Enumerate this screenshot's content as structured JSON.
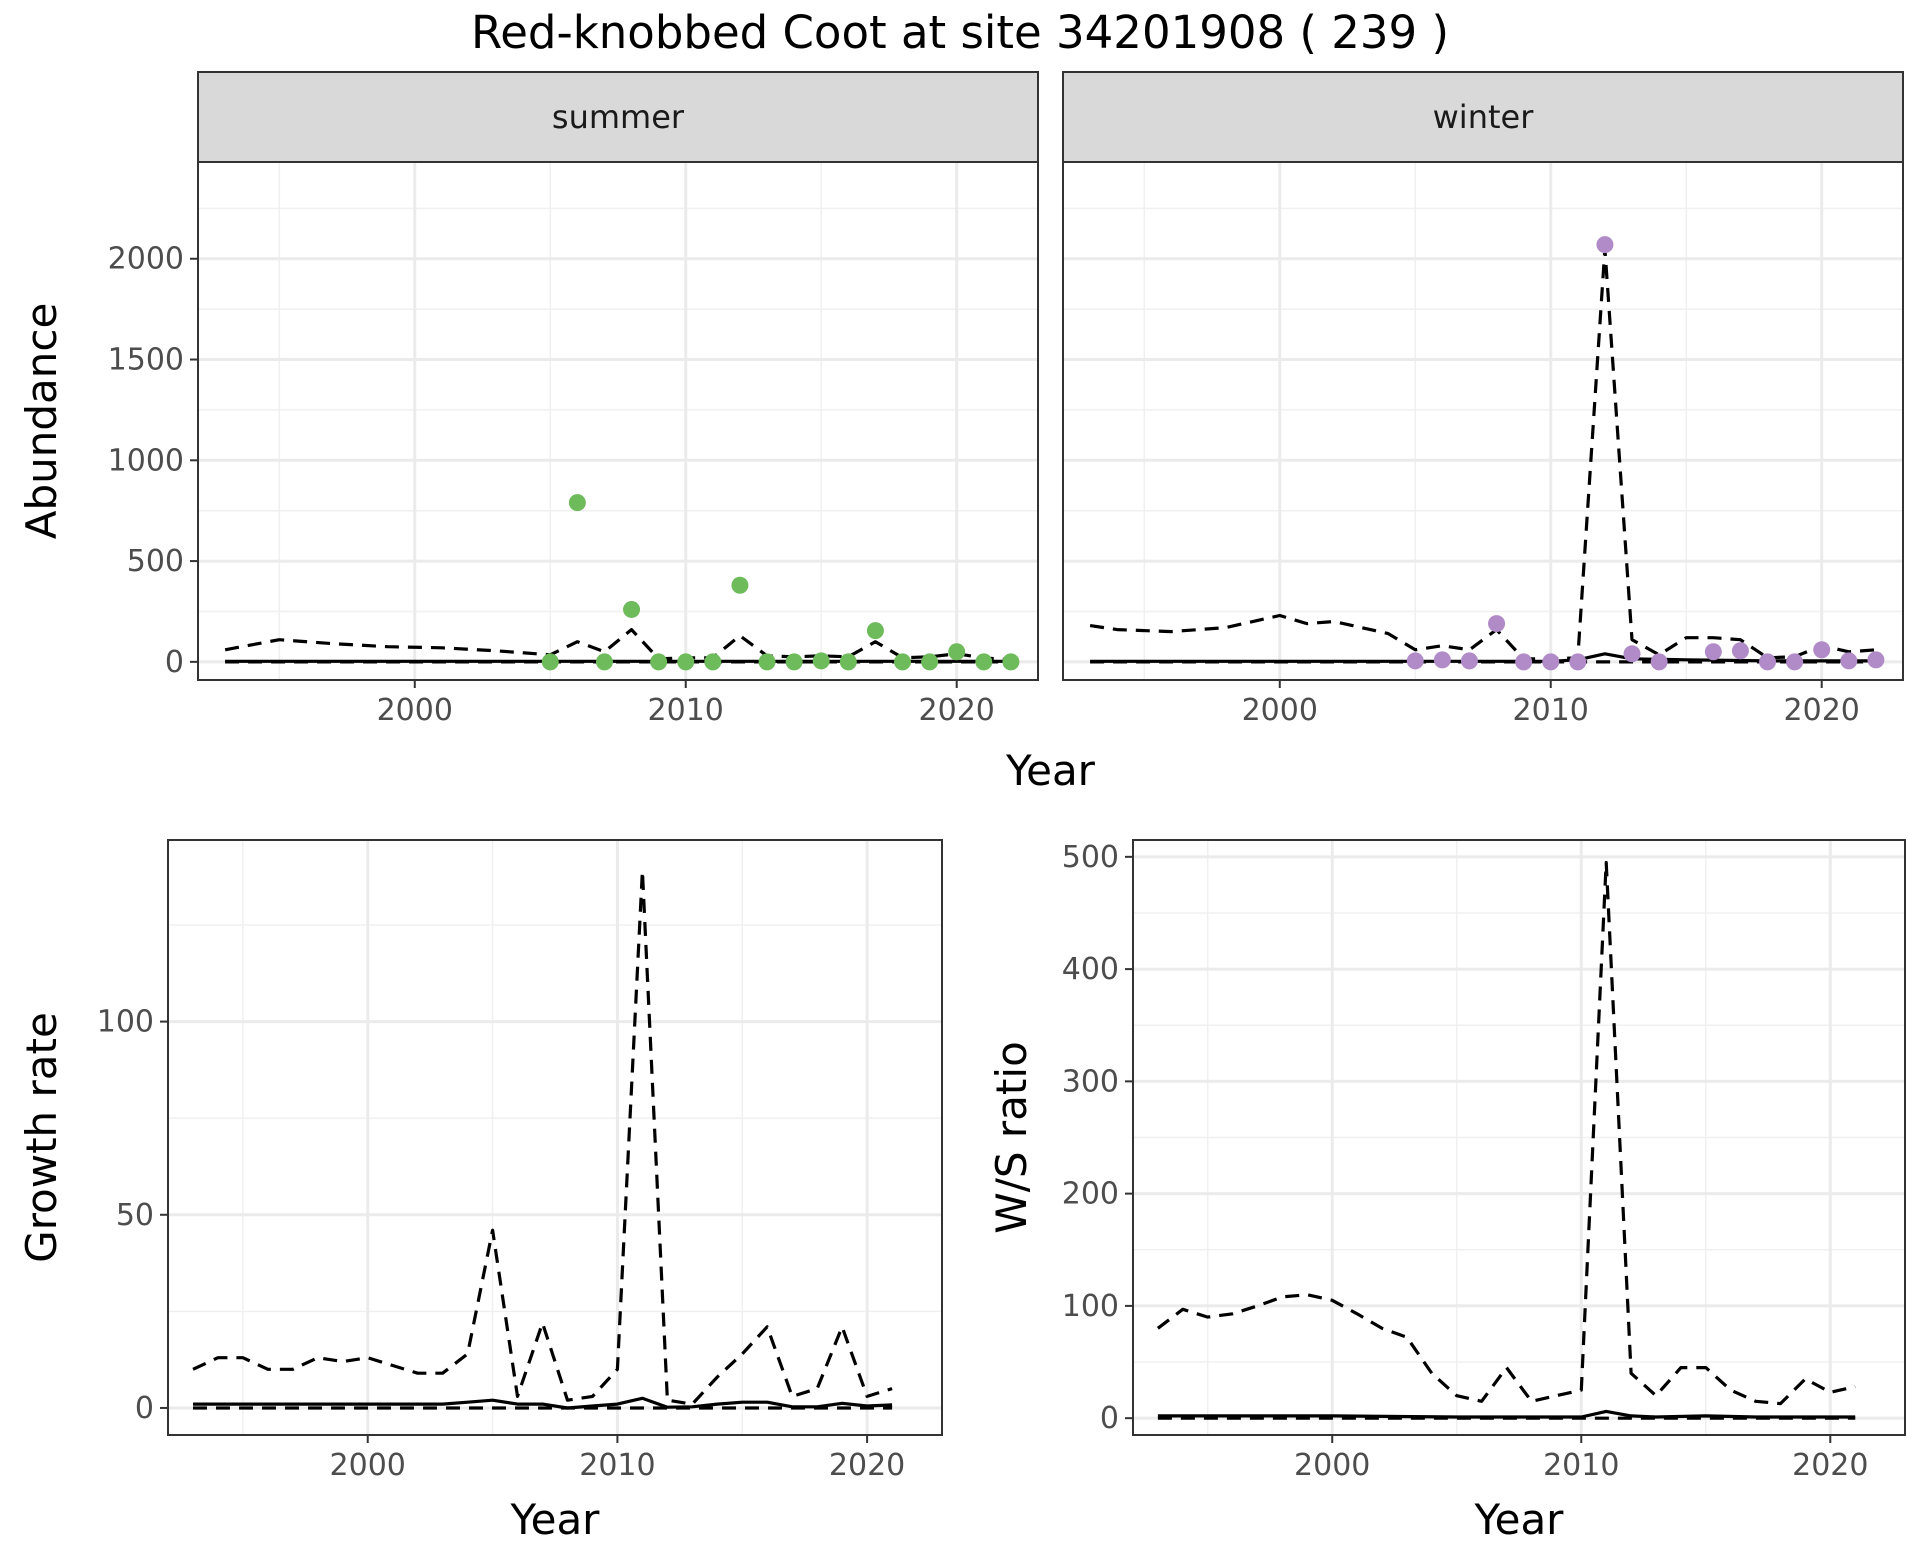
{
  "title": "Red-knobbed Coot at site 34201908 ( 239 )",
  "chart_data": [
    {
      "type": "line",
      "panel": "abundance",
      "facets": [
        "summer",
        "winter"
      ],
      "xlabel": "Year",
      "ylabel": "Abundance",
      "xlim": [
        1992,
        2023
      ],
      "ylim": [
        -90,
        2480
      ],
      "x_ticks": [
        2000,
        2010,
        2020
      ],
      "y_ticks": [
        0,
        500,
        1000,
        1500,
        2000
      ],
      "grid": true,
      "summer": {
        "point_color": "#6dbb5a",
        "points": {
          "x": [
            2005,
            2006,
            2007,
            2008,
            2009,
            2010,
            2011,
            2012,
            2013,
            2014,
            2015,
            2016,
            2017,
            2018,
            2019,
            2020,
            2021,
            2022
          ],
          "y": [
            0,
            790,
            0,
            260,
            0,
            0,
            0,
            380,
            0,
            0,
            5,
            0,
            155,
            0,
            0,
            50,
            0,
            0
          ]
        },
        "dashed_upper": {
          "x": [
            1993,
            1995,
            1997,
            1999,
            2001,
            2003,
            2005,
            2006,
            2007,
            2008,
            2009,
            2010,
            2011,
            2012,
            2013,
            2014,
            2015,
            2016,
            2017,
            2018,
            2019,
            2020,
            2021,
            2022
          ],
          "y": [
            60,
            110,
            90,
            75,
            70,
            55,
            35,
            100,
            50,
            160,
            15,
            20,
            20,
            130,
            30,
            25,
            30,
            25,
            100,
            20,
            25,
            40,
            20,
            10
          ]
        },
        "solid_mean": {
          "x": [
            1993,
            2022
          ],
          "y": [
            3,
            3
          ]
        },
        "dashed_lower": {
          "x": [
            1993,
            2022
          ],
          "y": [
            0,
            0
          ]
        }
      },
      "winter": {
        "point_color": "#b08bc8",
        "points": {
          "x": [
            2005,
            2006,
            2007,
            2008,
            2009,
            2010,
            2011,
            2012,
            2013,
            2014,
            2016,
            2017,
            2018,
            2019,
            2020,
            2021,
            2022
          ],
          "y": [
            5,
            10,
            5,
            190,
            0,
            0,
            0,
            2070,
            40,
            0,
            50,
            55,
            0,
            0,
            60,
            5,
            10
          ]
        },
        "dashed_upper": {
          "x": [
            1993,
            1994,
            1996,
            1998,
            2000,
            2001,
            2002,
            2004,
            2005,
            2006,
            2007,
            2008,
            2009,
            2010,
            2011,
            2012,
            2013,
            2014,
            2015,
            2016,
            2017,
            2018,
            2019,
            2020,
            2021,
            2022
          ],
          "y": [
            180,
            160,
            150,
            170,
            230,
            190,
            200,
            140,
            60,
            80,
            60,
            160,
            15,
            15,
            20,
            2050,
            110,
            35,
            120,
            120,
            110,
            20,
            25,
            80,
            50,
            60
          ]
        },
        "solid_mean": {
          "x": [
            1993,
            2010,
            2011,
            2012,
            2013,
            2015,
            2018,
            2022
          ],
          "y": [
            3,
            3,
            10,
            40,
            15,
            10,
            5,
            5
          ]
        },
        "dashed_lower": {
          "x": [
            1993,
            2022
          ],
          "y": [
            0,
            0
          ]
        }
      }
    },
    {
      "type": "line",
      "panel": "growth",
      "xlabel": "Year",
      "ylabel": "Growth rate",
      "xlim": [
        1992,
        2023
      ],
      "ylim": [
        -7,
        147
      ],
      "x_ticks": [
        2000,
        2010,
        2020
      ],
      "y_ticks": [
        0,
        50,
        100
      ],
      "grid": true,
      "dashed_upper": {
        "x": [
          1993,
          1994,
          1995,
          1996,
          1997,
          1998,
          1999,
          2000,
          2001,
          2002,
          2003,
          2004,
          2005,
          2006,
          2007,
          2008,
          2009,
          2010,
          2011,
          2012,
          2013,
          2014,
          2015,
          2016,
          2017,
          2018,
          2019,
          2020,
          2021
        ],
        "y": [
          10,
          13,
          13,
          10,
          10,
          13,
          12,
          13,
          11,
          9,
          9,
          14,
          46,
          3,
          22,
          2,
          3,
          10,
          139,
          2,
          1,
          8,
          14,
          21,
          3,
          5,
          21,
          3,
          5
        ]
      },
      "solid_mean": {
        "x": [
          1993,
          1995,
          1997,
          1999,
          2001,
          2003,
          2004,
          2005,
          2006,
          2007,
          2008,
          2009,
          2010,
          2011,
          2012,
          2013,
          2014,
          2015,
          2016,
          2017,
          2018,
          2019,
          2020,
          2021
        ],
        "y": [
          1,
          1,
          1,
          1,
          1,
          1,
          1.5,
          2,
          1,
          1,
          0,
          0.5,
          1,
          2.5,
          0.2,
          0.3,
          1,
          1.5,
          1.5,
          0.3,
          0.3,
          1.2,
          0.5,
          0.8
        ]
      },
      "dashed_lower": {
        "x": [
          1993,
          2021
        ],
        "y": [
          0,
          0
        ]
      }
    },
    {
      "type": "line",
      "panel": "ratio",
      "xlabel": "Year",
      "ylabel": "W/S ratio",
      "xlim": [
        1992,
        2023
      ],
      "ylim": [
        -15,
        515
      ],
      "x_ticks": [
        2000,
        2010,
        2020
      ],
      "y_ticks": [
        0,
        100,
        200,
        300,
        400,
        500
      ],
      "grid": true,
      "dashed_upper": {
        "x": [
          1993,
          1994,
          1995,
          1996,
          1997,
          1998,
          1999,
          2000,
          2001,
          2002,
          2003,
          2004,
          2005,
          2006,
          2007,
          2008,
          2009,
          2010,
          2011,
          2012,
          2013,
          2014,
          2015,
          2016,
          2017,
          2018,
          2019,
          2020,
          2021
        ],
        "y": [
          80,
          97,
          90,
          93,
          100,
          108,
          110,
          105,
          93,
          80,
          72,
          40,
          20,
          15,
          45,
          15,
          20,
          25,
          495,
          40,
          20,
          45,
          45,
          25,
          15,
          13,
          35,
          23,
          28
        ]
      },
      "solid_mean": {
        "x": [
          1993,
          2000,
          2005,
          2009,
          2010,
          2011,
          2012,
          2013,
          2015,
          2017,
          2019,
          2021
        ],
        "y": [
          2,
          2,
          1,
          1,
          1,
          6,
          2,
          1,
          2,
          1,
          1,
          1
        ]
      },
      "dashed_lower": {
        "x": [
          1993,
          2021
        ],
        "y": [
          0,
          0
        ]
      }
    }
  ]
}
